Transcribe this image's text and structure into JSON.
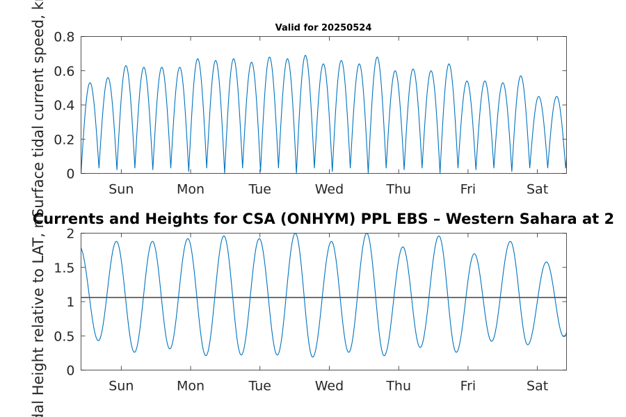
{
  "chart_data": [
    {
      "type": "line",
      "title": "Valid for 20250524",
      "ylabel": "Surface tidal current speed, kn",
      "xlabel": "",
      "xlim": [
        0,
        7
      ],
      "ylim": [
        0,
        0.8
      ],
      "yticks": [
        "0",
        "0.2",
        "0.4",
        "0.6",
        "0.8"
      ],
      "xticks": [
        {
          "label": "Sun",
          "x": 0.58
        },
        {
          "label": "Mon",
          "x": 1.58
        },
        {
          "label": "Tue",
          "x": 2.58
        },
        {
          "label": "Wed",
          "x": 3.58
        },
        {
          "label": "Thu",
          "x": 4.58
        },
        {
          "label": "Fri",
          "x": 5.58
        },
        {
          "label": "Sat",
          "x": 6.58
        }
      ],
      "grid": false,
      "series": [
        {
          "color": "#0072BD",
          "period_days": 0.2588,
          "phase_days": 0.0,
          "minimum_kn": 0.0,
          "peaks_kn": [
            0.53,
            0.56,
            0.63,
            0.62,
            0.62,
            0.62,
            0.67,
            0.66,
            0.67,
            0.65,
            0.68,
            0.67,
            0.69,
            0.64,
            0.66,
            0.64,
            0.68,
            0.6,
            0.61,
            0.6,
            0.64,
            0.54,
            0.54,
            0.53,
            0.57,
            0.45,
            0.45,
            0.4
          ],
          "troughs_kn": [
            0.0,
            0.03,
            0.02,
            0.03,
            0.02,
            0.03,
            0.01,
            0.03,
            0.0,
            0.03,
            0.01,
            0.03,
            0.0,
            0.03,
            0.01,
            0.03,
            0.0,
            0.03,
            0.02,
            0.03,
            0.0,
            0.03,
            0.02,
            0.03,
            0.01,
            0.03,
            0.03,
            0.03
          ]
        }
      ]
    },
    {
      "type": "line",
      "title": "Currents and Heights for CSA (ONHYM) PPL EBS  – Western Sahara at 2",
      "ylabel": "Tidal Height relative to LAT, m",
      "xlabel": "",
      "xlim": [
        0,
        7
      ],
      "ylim": [
        0,
        2
      ],
      "yticks": [
        "0",
        "0.5",
        "1",
        "1.5",
        "2"
      ],
      "xticks": [
        {
          "label": "Sun",
          "x": 0.58
        },
        {
          "label": "Mon",
          "x": 1.58
        },
        {
          "label": "Tue",
          "x": 2.58
        },
        {
          "label": "Wed",
          "x": 3.58
        },
        {
          "label": "Thu",
          "x": 4.58
        },
        {
          "label": "Fri",
          "x": 5.58
        },
        {
          "label": "Sat",
          "x": 6.58
        }
      ],
      "grid": false,
      "reference_line": {
        "y": 1.06,
        "color": "#000000"
      },
      "series": [
        {
          "color": "#0072BD",
          "highs": [
            {
              "x": -0.02,
              "y": 1.8
            },
            {
              "x": 0.51,
              "y": 1.88
            },
            {
              "x": 1.03,
              "y": 1.88
            },
            {
              "x": 1.54,
              "y": 1.92
            },
            {
              "x": 2.06,
              "y": 1.96
            },
            {
              "x": 2.57,
              "y": 1.92
            },
            {
              "x": 3.09,
              "y": 2.0
            },
            {
              "x": 3.61,
              "y": 1.88
            },
            {
              "x": 4.12,
              "y": 2.0
            },
            {
              "x": 4.64,
              "y": 1.8
            },
            {
              "x": 5.16,
              "y": 1.96
            },
            {
              "x": 5.67,
              "y": 1.7
            },
            {
              "x": 6.19,
              "y": 1.88
            },
            {
              "x": 6.71,
              "y": 1.58
            },
            {
              "x": 7.22,
              "y": 1.5
            }
          ],
          "lows": [
            {
              "x": 0.25,
              "y": 0.43
            },
            {
              "x": 0.77,
              "y": 0.26
            },
            {
              "x": 1.28,
              "y": 0.31
            },
            {
              "x": 1.8,
              "y": 0.21
            },
            {
              "x": 2.31,
              "y": 0.22
            },
            {
              "x": 2.83,
              "y": 0.22
            },
            {
              "x": 3.34,
              "y": 0.19
            },
            {
              "x": 3.86,
              "y": 0.26
            },
            {
              "x": 4.37,
              "y": 0.21
            },
            {
              "x": 4.89,
              "y": 0.33
            },
            {
              "x": 5.41,
              "y": 0.26
            },
            {
              "x": 5.92,
              "y": 0.42
            },
            {
              "x": 6.44,
              "y": 0.37
            },
            {
              "x": 6.96,
              "y": 0.49
            }
          ]
        }
      ]
    }
  ]
}
